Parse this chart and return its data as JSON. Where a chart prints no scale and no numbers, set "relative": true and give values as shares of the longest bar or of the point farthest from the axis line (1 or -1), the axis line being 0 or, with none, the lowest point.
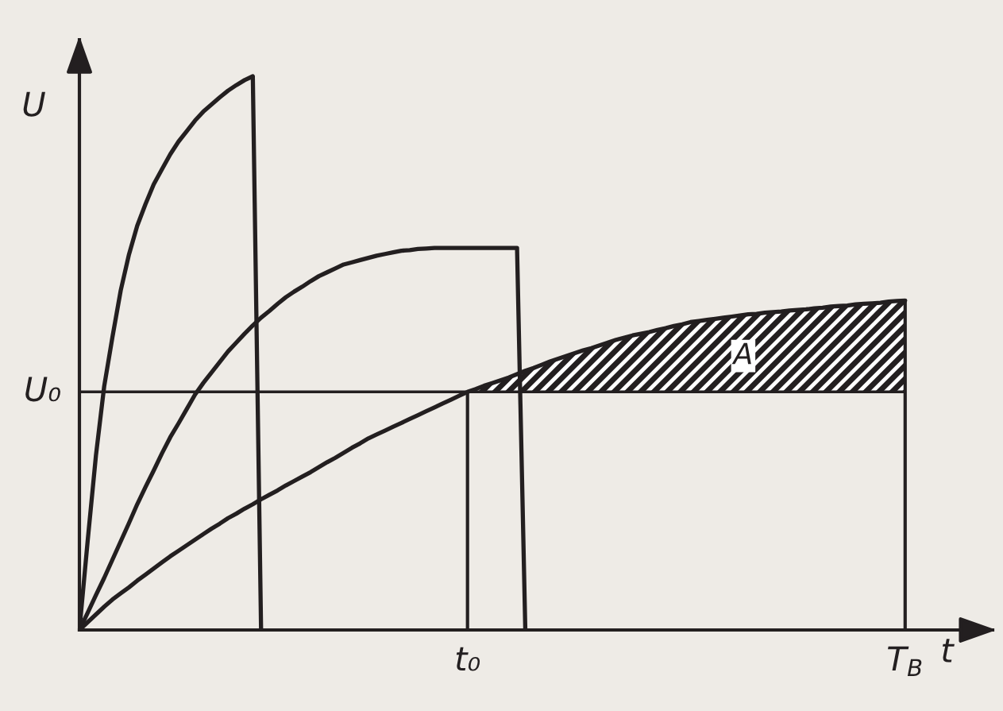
{
  "chart_data": {
    "type": "line",
    "relative": true,
    "xlabel": "t",
    "ylabel": "U",
    "categories": [
      null,
      null,
      null,
      null,
      null,
      null,
      null,
      null,
      null,
      null,
      null,
      null,
      null,
      null,
      null,
      null,
      null,
      null,
      null,
      null,
      null,
      null,
      null,
      null,
      null,
      null,
      null,
      null,
      null,
      null,
      null,
      null,
      null,
      null,
      null,
      null,
      null,
      null,
      null,
      null,
      null,
      null,
      null,
      null,
      null,
      null,
      null,
      "t₀",
      null,
      null,
      null,
      null,
      null,
      null,
      null,
      null,
      null,
      null,
      null,
      null,
      null,
      null,
      null,
      null,
      null,
      null,
      null,
      null,
      null,
      null,
      null,
      null,
      null,
      null,
      null,
      null,
      null,
      null,
      null,
      null,
      null,
      null,
      null,
      null,
      null,
      null,
      null,
      null,
      null,
      null,
      null,
      null,
      null,
      null,
      null,
      null,
      null,
      null,
      null,
      null,
      "T$_{B}$"
    ],
    "series": [
      {
        "color": "#231f20",
        "values": [
          0,
          0.161,
          0.315,
          0.44,
          0.529,
          0.613,
          0.678,
          0.73,
          0.769,
          0.805,
          0.832,
          0.859,
          0.882,
          0.901,
          0.92,
          0.936,
          0.949,
          0.962,
          0.974,
          0.984,
          0.993,
          1.0,
          0,
          null,
          null,
          null,
          null,
          null,
          null,
          null,
          null,
          null,
          null,
          null,
          null,
          null,
          null,
          null,
          null,
          null,
          null,
          null,
          null,
          null,
          null,
          null,
          null,
          null,
          null,
          null,
          null,
          null,
          null,
          null,
          null,
          null,
          null,
          null,
          null,
          null,
          null,
          null,
          null,
          null,
          null,
          null,
          null,
          null,
          null,
          null,
          null,
          null,
          null,
          null,
          null,
          null,
          null,
          null,
          null,
          null,
          null,
          null,
          null,
          null,
          null,
          null,
          null,
          null,
          null,
          null,
          null,
          null,
          null,
          null,
          null,
          null,
          null,
          null,
          null,
          null,
          null
        ]
      },
      {
        "color": "#231f20",
        "values": [
          0,
          0.031,
          0.063,
          0.094,
          0.127,
          0.16,
          0.193,
          0.227,
          0.258,
          0.288,
          0.319,
          0.348,
          0.373,
          0.399,
          0.425,
          0.446,
          0.465,
          0.484,
          0.503,
          0.519,
          0.535,
          0.55,
          0.564,
          0.576,
          0.589,
          0.601,
          0.611,
          0.62,
          0.63,
          0.639,
          0.646,
          0.653,
          0.66,
          0.664,
          0.668,
          0.672,
          0.676,
          0.679,
          0.682,
          0.685,
          0.686,
          0.688,
          0.689,
          0.69,
          0.69,
          0.69,
          0.69,
          0.69,
          0.69,
          0.69,
          0.69,
          0.69,
          0.69,
          0.69,
          0,
          null,
          null,
          null,
          null,
          null,
          null,
          null,
          null,
          null,
          null,
          null,
          null,
          null,
          null,
          null,
          null,
          null,
          null,
          null,
          null,
          null,
          null,
          null,
          null,
          null,
          null,
          null,
          null,
          null,
          null,
          null,
          null,
          null,
          null,
          null,
          null,
          null,
          null,
          null,
          null,
          null,
          null,
          null,
          null,
          null,
          null
        ]
      },
      {
        "color": "#231f20",
        "values": [
          0,
          0.014,
          0.028,
          0.042,
          0.055,
          0.066,
          0.077,
          0.089,
          0.1,
          0.111,
          0.122,
          0.133,
          0.143,
          0.153,
          0.163,
          0.173,
          0.183,
          0.192,
          0.202,
          0.21,
          0.219,
          0.227,
          0.236,
          0.244,
          0.252,
          0.261,
          0.269,
          0.277,
          0.285,
          0.294,
          0.303,
          0.311,
          0.32,
          0.329,
          0.337,
          0.346,
          0.353,
          0.36,
          0.367,
          0.374,
          0.381,
          0.388,
          0.395,
          0.402,
          0.409,
          0.416,
          0.423,
          0.43,
          0.435,
          0.441,
          0.446,
          0.451,
          0.456,
          0.462,
          0.468,
          0.473,
          0.479,
          0.485,
          0.49,
          0.495,
          0.5,
          0.505,
          0.509,
          0.514,
          0.519,
          0.524,
          0.528,
          0.532,
          0.535,
          0.538,
          0.542,
          0.545,
          0.549,
          0.552,
          0.556,
          0.558,
          0.56,
          0.562,
          0.564,
          0.566,
          0.568,
          0.57,
          0.571,
          0.573,
          0.574,
          0.575,
          0.577,
          0.578,
          0.579,
          0.581,
          0.582,
          0.584,
          0.585,
          0.586,
          0.588,
          0.589,
          0.59,
          0.591,
          0.593,
          0.594,
          0.595
        ],
        "lower": [
          null,
          null,
          null,
          null,
          null,
          null,
          null,
          null,
          null,
          null,
          null,
          null,
          null,
          null,
          null,
          null,
          null,
          null,
          null,
          null,
          null,
          null,
          null,
          null,
          null,
          null,
          null,
          null,
          null,
          null,
          null,
          null,
          null,
          null,
          null,
          null,
          null,
          null,
          null,
          null,
          null,
          null,
          null,
          null,
          null,
          null,
          null,
          0.43,
          0.43,
          0.43,
          0.43,
          0.43,
          0.43,
          0.43,
          0.43,
          0.43,
          0.43,
          0.43,
          0.43,
          0.43,
          0.43,
          0.43,
          0.43,
          0.43,
          0.43,
          0.43,
          0.43,
          0.43,
          0.43,
          0.43,
          0.43,
          0.43,
          0.43,
          0.43,
          0.43,
          0.43,
          0.43,
          0.43,
          0.43,
          0.43,
          0.43,
          0.43,
          0.43,
          0.43,
          0.43,
          0.43,
          0.43,
          0.43,
          0.43,
          0.43,
          0.43,
          0.43,
          0.43,
          0.43,
          0.43,
          0.43,
          0.43,
          0.43,
          0.43,
          0.43,
          0.43
        ],
        "upper": [
          null,
          null,
          null,
          null,
          null,
          null,
          null,
          null,
          null,
          null,
          null,
          null,
          null,
          null,
          null,
          null,
          null,
          null,
          null,
          null,
          null,
          null,
          null,
          null,
          null,
          null,
          null,
          null,
          null,
          null,
          null,
          null,
          null,
          null,
          null,
          null,
          null,
          null,
          null,
          null,
          null,
          null,
          null,
          null,
          null,
          null,
          null,
          0.43,
          0.435,
          0.441,
          0.446,
          0.451,
          0.456,
          0.462,
          0.468,
          0.473,
          0.479,
          0.485,
          0.49,
          0.495,
          0.5,
          0.505,
          0.509,
          0.514,
          0.519,
          0.524,
          0.528,
          0.532,
          0.535,
          0.538,
          0.542,
          0.545,
          0.549,
          0.552,
          0.556,
          0.558,
          0.56,
          0.562,
          0.564,
          0.566,
          0.568,
          0.57,
          0.571,
          0.573,
          0.574,
          0.575,
          0.577,
          0.578,
          0.579,
          0.581,
          0.582,
          0.584,
          0.585,
          0.586,
          0.588,
          0.589,
          0.59,
          0.591,
          0.593,
          0.594,
          0.595
        ]
      }
    ],
    "ref_lines": [
      {
        "axis": "y",
        "value": 0.43,
        "label": "U₀",
        "color": "#231f20"
      },
      {
        "axis": "x",
        "value": "t₀",
        "color": "#231f20"
      },
      {
        "axis": "x",
        "value": "T$_{B}$",
        "color": "#231f20"
      }
    ],
    "annotations": [
      "A"
    ]
  }
}
